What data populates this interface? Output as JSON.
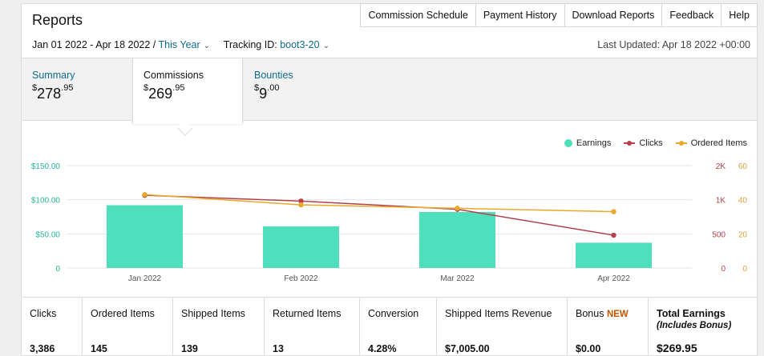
{
  "header": {
    "title": "Reports"
  },
  "nav": [
    "Commission Schedule",
    "Payment History",
    "Download Reports",
    "Feedback",
    "Help"
  ],
  "filter": {
    "date_range": "Jan 01 2022 - Apr 18 2022 /",
    "period": "This Year",
    "tracking_label": "Tracking ID:",
    "tracking_id": "boot3-20",
    "last_updated": "Last Updated: Apr 18 2022 +00:00"
  },
  "tabs": [
    {
      "label": "Summary",
      "dollar": "$",
      "whole": "278",
      "cents": ".95"
    },
    {
      "label": "Commissions",
      "dollar": "$",
      "whole": "269",
      "cents": ".95"
    },
    {
      "label": "Bounties",
      "dollar": "$",
      "whole": "9",
      "cents": ".00"
    }
  ],
  "legend": {
    "earnings": "Earnings",
    "clicks": "Clicks",
    "orders": "Ordered Items"
  },
  "colors": {
    "earnings": "#50dfbd",
    "clicks": "#b5404a",
    "orders": "#e8a92a",
    "link": "#0f6b8e",
    "new_badge": "#c45500"
  },
  "chart_data": {
    "type": "bar",
    "categories": [
      "Jan 2022",
      "Feb 2022",
      "Mar 2022",
      "Apr 2022"
    ],
    "series": [
      {
        "name": "Earnings",
        "type": "bar",
        "axis": "left",
        "values": [
          92,
          61,
          82,
          37
        ]
      },
      {
        "name": "Clicks",
        "type": "line",
        "axis": "right1",
        "values": [
          1130,
          980,
          860,
          480
        ]
      },
      {
        "name": "Ordered Items",
        "type": "line",
        "axis": "right2",
        "values": [
          43,
          37,
          35,
          33
        ]
      }
    ],
    "y_left": {
      "ticks": [
        "0",
        "$50.00",
        "$100.00",
        "$150.00"
      ],
      "tick_values": [
        0,
        50,
        100,
        150
      ],
      "range": [
        0,
        150
      ]
    },
    "y_right1": {
      "ticks": [
        "0",
        "500",
        "1K",
        "2K"
      ],
      "tick_values": [
        0,
        500,
        1000,
        2000
      ],
      "range": [
        0,
        2000
      ]
    },
    "y_right2": {
      "ticks": [
        "0",
        "20",
        "40",
        "60"
      ],
      "tick_values": [
        0,
        20,
        40,
        60
      ],
      "range": [
        0,
        60
      ]
    },
    "grid": true,
    "legend_position": "top-right"
  },
  "stats": [
    {
      "label": "Clicks",
      "value": "3,386"
    },
    {
      "label": "Ordered Items",
      "value": "145"
    },
    {
      "label": "Shipped Items",
      "value": "139"
    },
    {
      "label": "Returned Items",
      "value": "13"
    },
    {
      "label": "Conversion",
      "value": "4.28%"
    },
    {
      "label": "Shipped Items Revenue",
      "value": "$7,005.00"
    },
    {
      "label": "Bonus",
      "badge": "NEW",
      "value": "$0.00"
    },
    {
      "label": "Total Earnings",
      "sub": "(Includes Bonus)",
      "value": "$269.95"
    }
  ]
}
